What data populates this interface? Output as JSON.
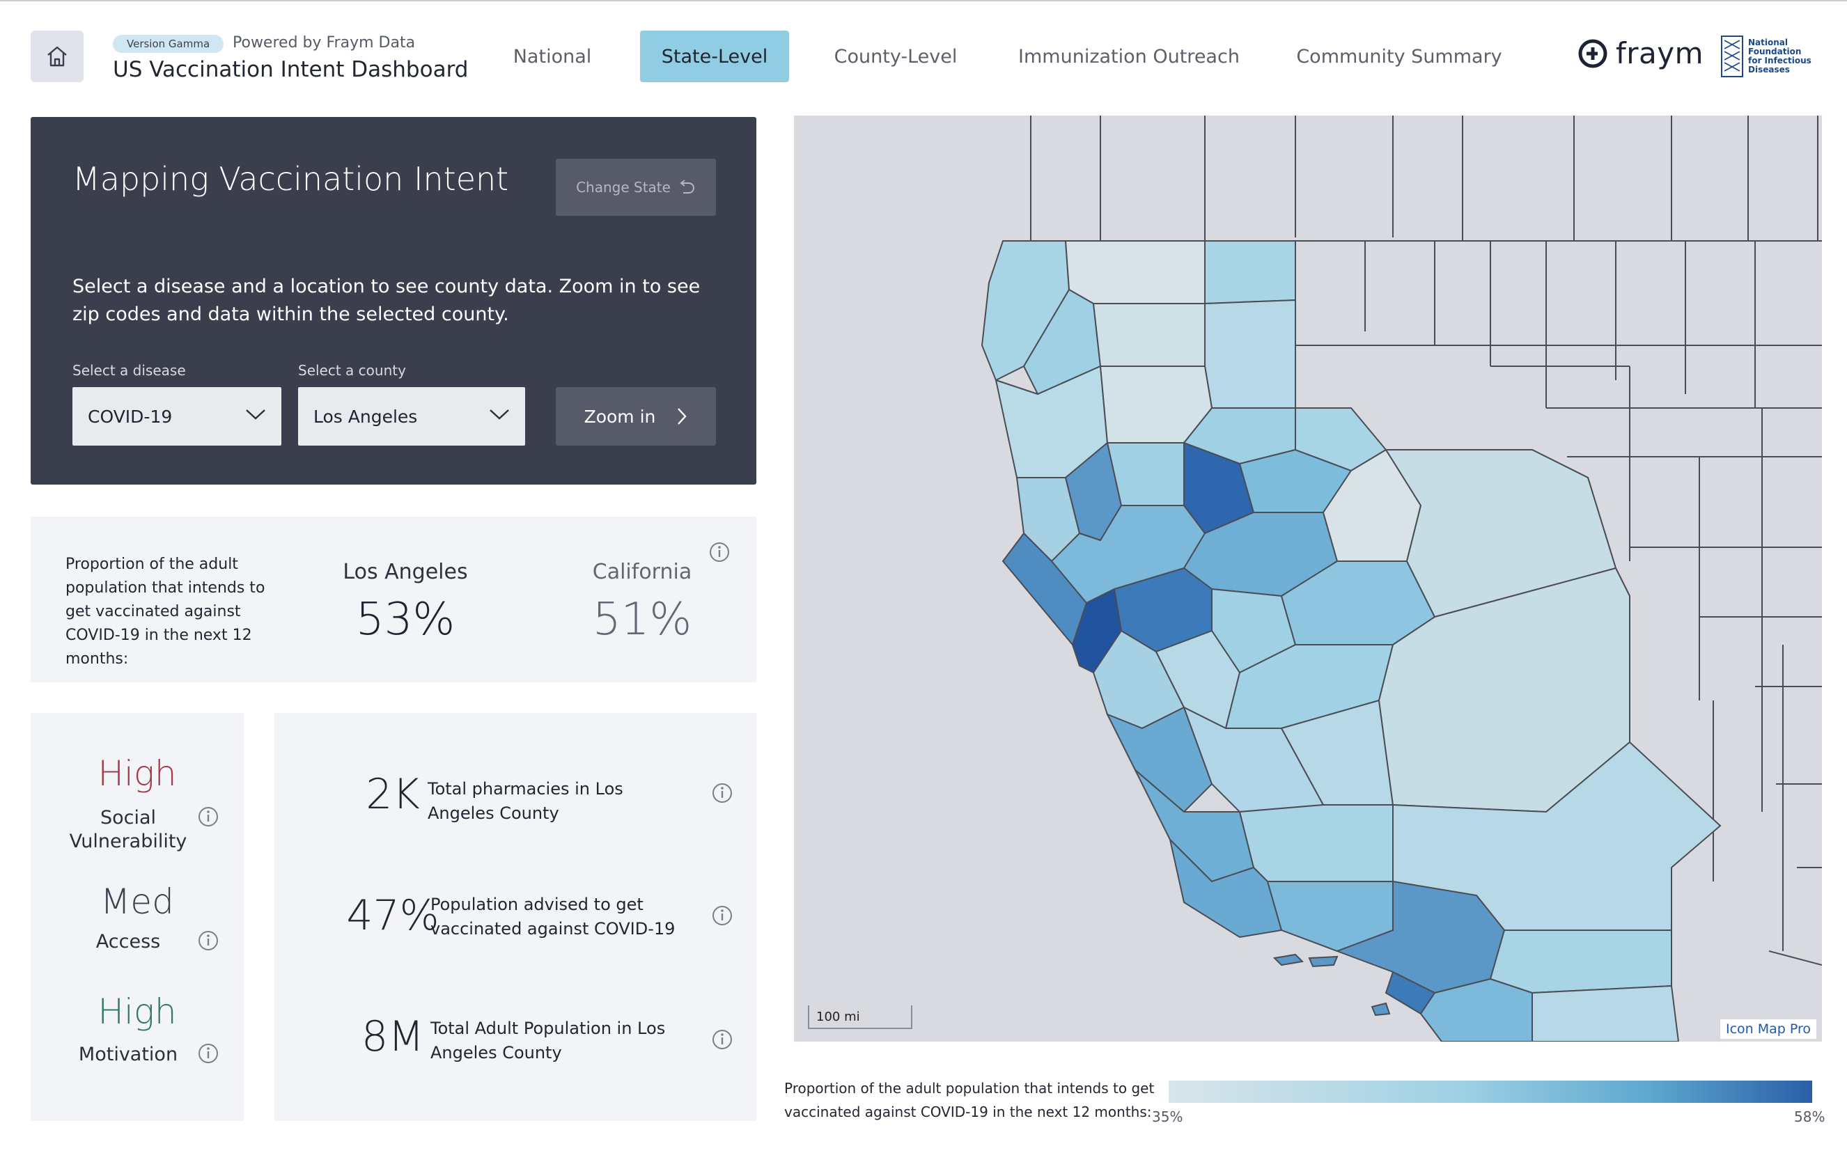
{
  "header": {
    "version_badge": "Version Gamma",
    "powered_by": "Powered by Fraym Data",
    "title": "US Vaccination Intent Dashboard",
    "nav": [
      {
        "label": "National",
        "active": false
      },
      {
        "label": "State-Level",
        "active": true
      },
      {
        "label": "County-Level",
        "active": false
      },
      {
        "label": "Immunization Outreach",
        "active": false
      },
      {
        "label": "Community Summary",
        "active": false
      }
    ],
    "brand_logo": "fraym",
    "partner_logo": "National Foundation for Infectious Diseases"
  },
  "control_panel": {
    "title": "Mapping Vaccination Intent",
    "change_state_label": "Change State",
    "description": "Select a disease and a location to see county data. Zoom in to see zip codes and data within the selected county.",
    "disease_label": "Select a disease",
    "disease_value": "COVID-19",
    "county_label": "Select a county",
    "county_value": "Los Angeles",
    "zoom_label": "Zoom in"
  },
  "proportion": {
    "description": "Proportion of the adult population that intends to get vaccinated against COVID-19 in the next 12 months:",
    "local_name": "Los Angeles",
    "local_value": "53%",
    "state_name": "California",
    "state_value": "51%"
  },
  "indicators": [
    {
      "level": "High",
      "label": "Social Vulnerability",
      "color": "#a23a48"
    },
    {
      "level": "Med",
      "label": "Access",
      "color": "#3d414d"
    },
    {
      "level": "High",
      "label": "Motivation",
      "color": "#2f7a60"
    }
  ],
  "stats": [
    {
      "value": "2K",
      "label": "Total pharmacies in Los Angeles County"
    },
    {
      "value": "47%",
      "label": "Population advised to get vaccinated against COVID-19"
    },
    {
      "value": "8M",
      "label": "Total Adult Population in Los Angeles County"
    }
  ],
  "map": {
    "scale_label": "100 mi",
    "credit": "Icon Map Pro",
    "colors": {
      "low": "#d8e5ea",
      "high": "#2a5fa8",
      "base": "#d9dadf"
    }
  },
  "legend": {
    "text": "Proportion of the adult population that intends to get vaccinated against COVID-19 in the next 12 months:",
    "min": "35%",
    "max": "58%"
  }
}
